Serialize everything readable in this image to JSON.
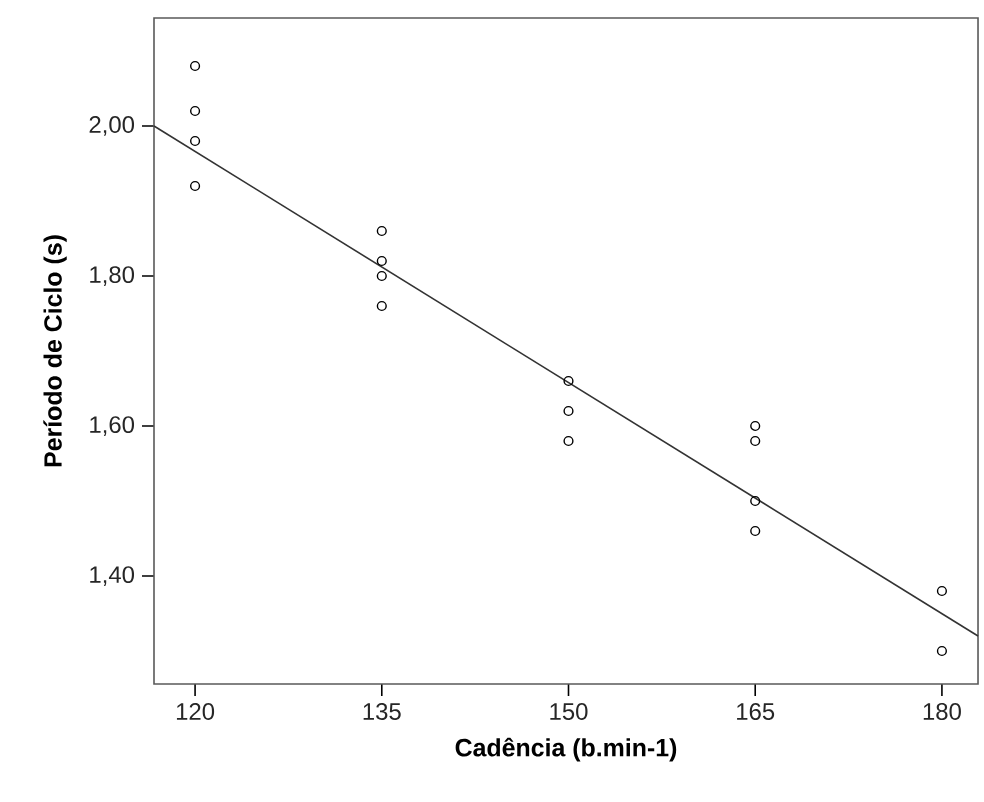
{
  "chart_data": {
    "type": "scatter",
    "xlabel": "Cadência (b.min-1)",
    "ylabel": "Período de Ciclo (s)",
    "xlim": [
      116.7,
      182.9
    ],
    "ylim": [
      1.256,
      2.144
    ],
    "xticks": [
      120,
      135,
      150,
      165,
      180
    ],
    "yticks": [
      {
        "value": 1.4,
        "label": "1,40"
      },
      {
        "value": 1.6,
        "label": "1,60"
      },
      {
        "value": 1.8,
        "label": "1,80"
      },
      {
        "value": 2.0,
        "label": "2,00"
      }
    ],
    "grid": false,
    "marker": "circle",
    "series": [
      {
        "color": "#000000",
        "x": [
          120,
          120,
          120,
          120,
          135,
          135,
          135,
          135,
          150,
          150,
          150,
          165,
          165,
          165,
          165,
          180,
          180
        ],
        "values": [
          2.08,
          2.02,
          1.98,
          1.92,
          1.86,
          1.82,
          1.8,
          1.76,
          1.66,
          1.62,
          1.58,
          1.6,
          1.58,
          1.5,
          1.46,
          1.38,
          1.3
        ]
      },
      {
        "type": "line",
        "color": "#333333",
        "marker": "none",
        "x": [
          116.7,
          182.9
        ],
        "values": [
          2.0,
          1.32
        ]
      }
    ]
  }
}
